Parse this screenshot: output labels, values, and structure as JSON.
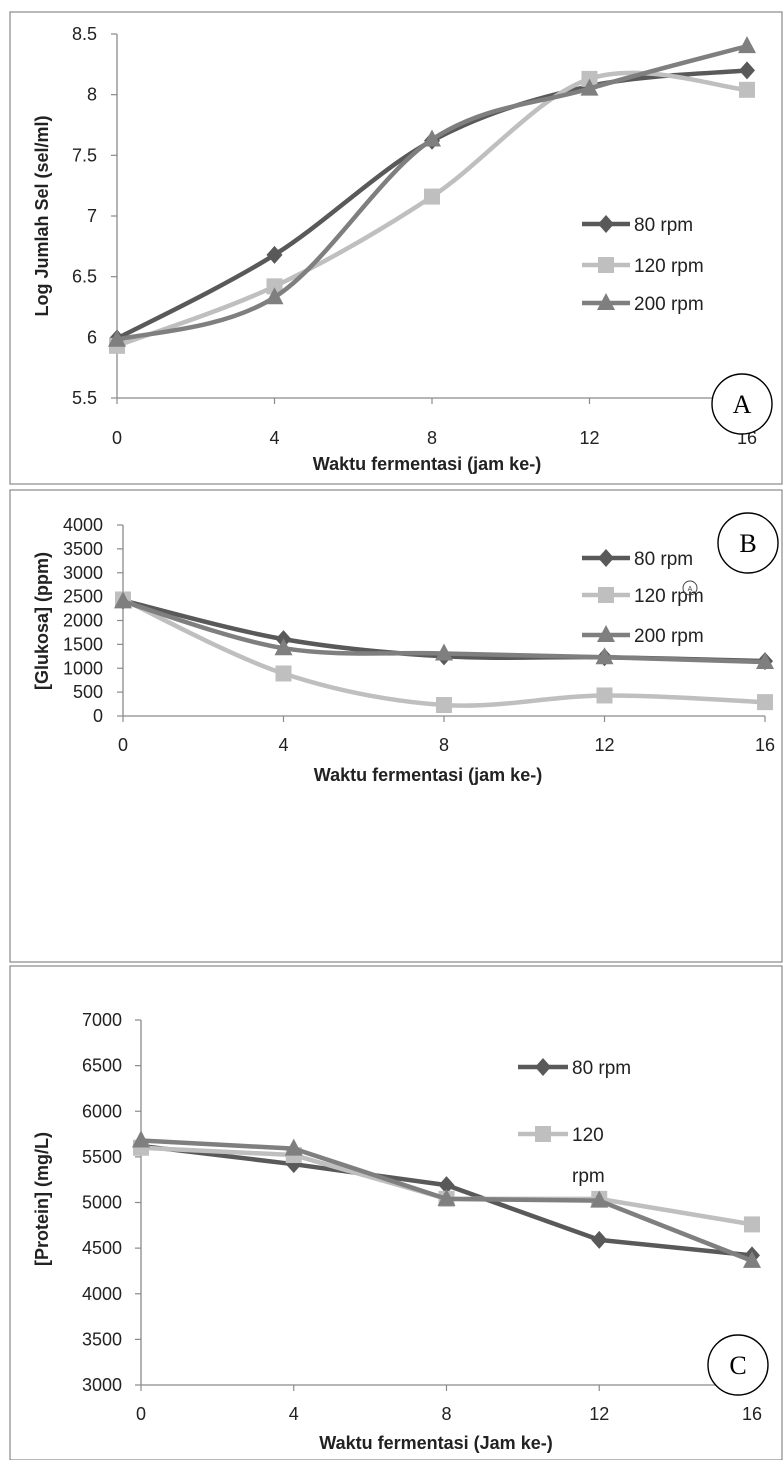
{
  "chart_data": [
    {
      "type": "line",
      "panel_label": "A",
      "x": [
        0,
        4,
        8,
        12,
        16
      ],
      "xlabel": "Waktu fermentasi (jam ke-)",
      "ylabel": "Log Jumlah Sel (sel/ml)",
      "ylim": [
        5.5,
        8.5
      ],
      "yticks": [
        5.5,
        6,
        6.5,
        7,
        7.5,
        8,
        8.5
      ],
      "ytick_labels": [
        "5.5",
        "6",
        "6.5",
        "7",
        "7.5",
        "8",
        "8.5"
      ],
      "xtick_labels": [
        "0",
        "4",
        "8",
        "12",
        "16"
      ],
      "smooth": true,
      "legend_position": "right",
      "series": [
        {
          "name": "80 rpm",
          "values": [
            5.99,
            6.68,
            7.62,
            8.07,
            8.2
          ],
          "marker": "diamond",
          "color": "#595959"
        },
        {
          "name": "120 rpm",
          "values": [
            5.93,
            6.42,
            7.16,
            8.13,
            8.04
          ],
          "marker": "square",
          "color": "#bfbfbf"
        },
        {
          "name": "200 rpm",
          "values": [
            5.98,
            6.33,
            7.63,
            8.05,
            8.4
          ],
          "marker": "triangle",
          "color": "#7f7f7f"
        }
      ]
    },
    {
      "type": "line",
      "panel_label": "B",
      "x": [
        0,
        4,
        8,
        12,
        16
      ],
      "xlabel": "Waktu fermentasi (jam ke-)",
      "ylabel": "[Glukosa] (ppm)",
      "ylim": [
        0,
        4000
      ],
      "yticks": [
        0,
        500,
        1000,
        1500,
        2000,
        2500,
        3000,
        3500,
        4000
      ],
      "ytick_labels": [
        "0",
        "500",
        "1000",
        "1500",
        "2000",
        "2500",
        "3000",
        "3500",
        "4000"
      ],
      "xtick_labels": [
        "0",
        "4",
        "8",
        "12",
        "16"
      ],
      "smooth": true,
      "legend_position": "top-right",
      "series": [
        {
          "name": "80 rpm",
          "values": [
            2420,
            1610,
            1250,
            1230,
            1150
          ],
          "marker": "diamond",
          "color": "#595959"
        },
        {
          "name": "120 rpm",
          "values": [
            2440,
            890,
            230,
            430,
            290
          ],
          "marker": "square",
          "color": "#bfbfbf"
        },
        {
          "name": "200 rpm",
          "values": [
            2400,
            1420,
            1310,
            1230,
            1130
          ],
          "marker": "triangle",
          "color": "#7f7f7f"
        }
      ]
    },
    {
      "type": "line",
      "panel_label": "C",
      "x": [
        0,
        4,
        8,
        12,
        16
      ],
      "xlabel": "Waktu fermentasi (Jam ke-)",
      "ylabel": "[Protein] (mg/L)",
      "ylim": [
        3000,
        7000
      ],
      "yticks": [
        3000,
        3500,
        4000,
        4500,
        5000,
        5500,
        6000,
        6500,
        7000
      ],
      "ytick_labels": [
        "3000",
        "3500",
        "4000",
        "4500",
        "5000",
        "5500",
        "6000",
        "6500",
        "7000"
      ],
      "xtick_labels": [
        "0",
        "4",
        "8",
        "12",
        "16"
      ],
      "smooth": false,
      "legend_position": "top-right",
      "series": [
        {
          "name": "80 rpm",
          "values": [
            5620,
            5420,
            5190,
            4590,
            4420
          ],
          "marker": "diamond",
          "color": "#595959"
        },
        {
          "name": "120",
          "values": [
            5600,
            5520,
            5040,
            5040,
            4760
          ],
          "marker": "square",
          "color": "#bfbfbf"
        },
        {
          "name": "",
          "values": [
            5680,
            5590,
            5040,
            5020,
            4360
          ],
          "marker": "triangle",
          "color": "#7f7f7f"
        }
      ]
    }
  ],
  "legend_extra": {
    "panel_c_series2_line2": "rpm"
  },
  "small_circle_label": "A"
}
